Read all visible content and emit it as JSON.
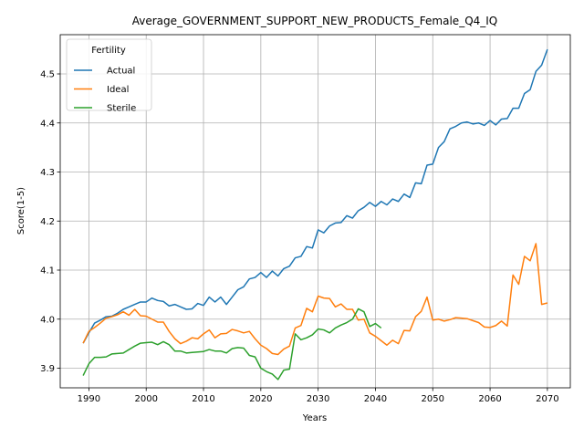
{
  "chart_data": {
    "type": "line",
    "title": "Average_GOVERNMENT_SUPPORT_NEW_PRODUCTS_Female_Q4_IQ",
    "xlabel": "Years",
    "ylabel": "Score(1-5)",
    "xlim": [
      1985,
      2074
    ],
    "ylim": [
      3.86,
      4.58
    ],
    "xticks": [
      1990,
      2000,
      2010,
      2020,
      2030,
      2040,
      2050,
      2060,
      2070
    ],
    "yticks": [
      3.9,
      4.0,
      4.1,
      4.2,
      4.3,
      4.4,
      4.5
    ],
    "xtick_labels": [
      "1990",
      "2000",
      "2010",
      "2020",
      "2030",
      "2040",
      "2050",
      "2060",
      "2070"
    ],
    "ytick_labels": [
      "3.9",
      "4.0",
      "4.1",
      "4.2",
      "4.3",
      "4.4",
      "4.5"
    ],
    "grid": true,
    "legend": {
      "title": "Fertility",
      "placement": "top-left"
    },
    "series": [
      {
        "name": "Actual",
        "color": "#1f77b4",
        "x_start": 1989,
        "values": [
          3.951,
          3.972,
          3.992,
          3.998,
          4.005,
          4.006,
          4.012,
          4.02,
          4.025,
          4.03,
          4.035,
          4.035,
          4.043,
          4.038,
          4.036,
          4.027,
          4.03,
          4.025,
          4.02,
          4.021,
          4.032,
          4.028,
          4.045,
          4.035,
          4.045,
          4.03,
          4.045,
          4.06,
          4.066,
          4.082,
          4.085,
          4.095,
          4.085,
          4.098,
          4.088,
          4.103,
          4.108,
          4.125,
          4.128,
          4.148,
          4.145,
          4.182,
          4.176,
          4.19,
          4.196,
          4.197,
          4.211,
          4.206,
          4.221,
          4.228,
          4.238,
          4.23,
          4.24,
          4.233,
          4.245,
          4.24,
          4.255,
          4.248,
          4.278,
          4.276,
          4.314,
          4.316,
          4.35,
          4.362,
          4.388,
          4.393,
          4.4,
          4.402,
          4.398,
          4.4,
          4.395,
          4.405,
          4.396,
          4.408,
          4.409,
          4.43,
          4.43,
          4.46,
          4.468,
          4.505,
          4.518,
          4.55
        ]
      },
      {
        "name": "Ideal",
        "color": "#ff7f0e",
        "x_start": 1989,
        "values": [
          3.951,
          3.975,
          3.983,
          3.992,
          4.002,
          4.005,
          4.009,
          4.015,
          4.008,
          4.02,
          4.007,
          4.006,
          4.0,
          3.994,
          3.994,
          3.975,
          3.96,
          3.95,
          3.955,
          3.962,
          3.96,
          3.97,
          3.978,
          3.962,
          3.97,
          3.971,
          3.979,
          3.976,
          3.972,
          3.975,
          3.96,
          3.947,
          3.94,
          3.93,
          3.928,
          3.939,
          3.945,
          3.982,
          3.987,
          4.022,
          4.015,
          4.047,
          4.043,
          4.042,
          4.025,
          4.031,
          4.02,
          4.02,
          3.998,
          4.0,
          3.972,
          3.965,
          3.956,
          3.947,
          3.957,
          3.95,
          3.977,
          3.976,
          4.005,
          4.016,
          4.045,
          3.998,
          4.0,
          3.996,
          3.999,
          4.003,
          4.002,
          4.001,
          3.997,
          3.993,
          3.984,
          3.983,
          3.987,
          3.996,
          3.986,
          4.09,
          4.071,
          4.128,
          4.119,
          4.154,
          4.03,
          4.033
        ]
      },
      {
        "name": "Sterile",
        "color": "#2ca02c",
        "x_start": 1989,
        "values": [
          3.885,
          3.909,
          3.922,
          3.922,
          3.923,
          3.929,
          3.93,
          3.931,
          3.938,
          3.945,
          3.951,
          3.952,
          3.953,
          3.948,
          3.954,
          3.948,
          3.935,
          3.935,
          3.931,
          3.932,
          3.933,
          3.934,
          3.938,
          3.935,
          3.935,
          3.931,
          3.94,
          3.942,
          3.941,
          3.926,
          3.923,
          3.9,
          3.893,
          3.888,
          3.877,
          3.896,
          3.898,
          3.97,
          3.958,
          3.962,
          3.968,
          3.98,
          3.978,
          3.972,
          3.982,
          3.988,
          3.993,
          4.0,
          4.021,
          4.015,
          3.985,
          3.991,
          3.982
        ]
      }
    ]
  }
}
